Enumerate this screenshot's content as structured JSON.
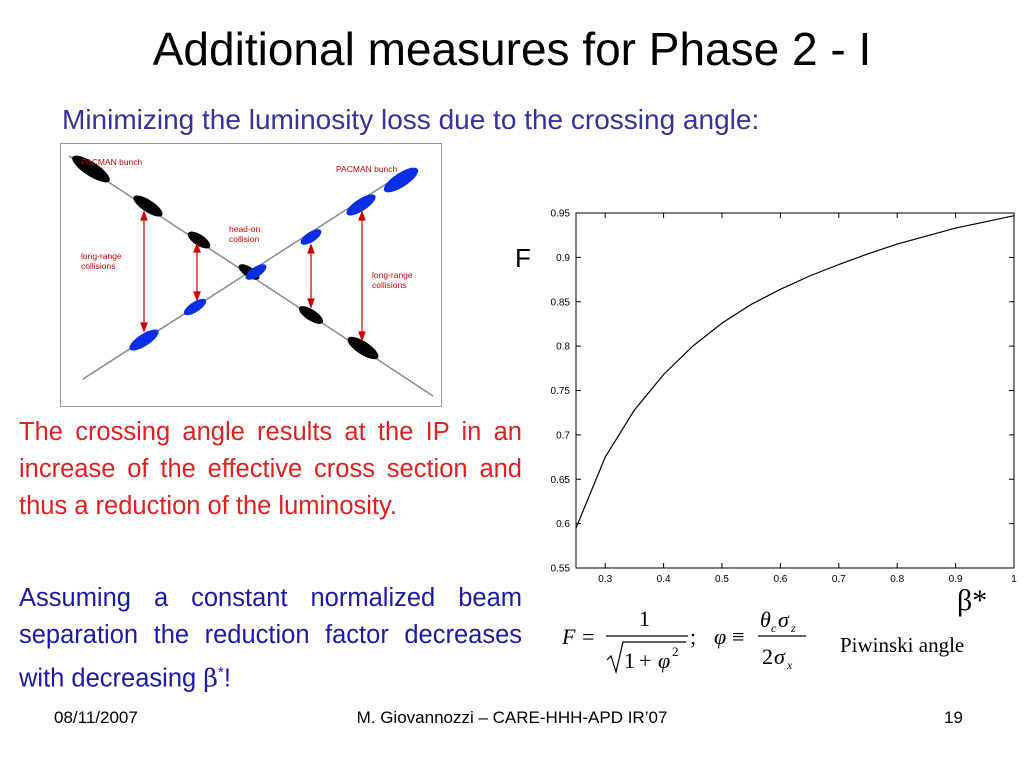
{
  "slide": {
    "title": "Additional measures for Phase 2 - I",
    "subtitle": "Minimizing the luminosity loss due to the crossing angle:"
  },
  "diagram": {
    "labels": {
      "pacman_left": "PACMAN bunch",
      "pacman_right": "PACMAN bunch",
      "head_on_1": "head-on",
      "head_on_2": "collision",
      "long_range_left_1": "long-range",
      "long_range_left_2": "collisions",
      "long_range_right_1": "long-range",
      "long_range_right_2": "collisions"
    },
    "colors": {
      "bunch_black": "#000000",
      "bunch_blue": "#0a2ee6",
      "arrow": "#cc0000",
      "label": "#cc0000"
    }
  },
  "text": {
    "para1": "The crossing angle results at the IP in an increase of the effective cross section and thus a reduction of the luminosity.",
    "para2": "Assuming a constant normalized beam separation the reduction factor decreases with decreasing ",
    "para2_beta": "β",
    "para2_star": "*",
    "para2_end": "!"
  },
  "chart_data": {
    "type": "line",
    "ylabel": "F",
    "xlabel": "β*",
    "xlim": [
      0.25,
      1.0
    ],
    "ylim": [
      0.55,
      0.95
    ],
    "xticks": [
      "0.3",
      "0.4",
      "0.5",
      "0.6",
      "0.7",
      "0.8",
      "0.9",
      "1"
    ],
    "yticks": [
      "0.55",
      "0.6",
      "0.65",
      "0.7",
      "0.75",
      "0.8",
      "0.85",
      "0.9",
      "0.95"
    ],
    "grid": false,
    "series": [
      {
        "x": [
          0.25,
          0.3,
          0.35,
          0.4,
          0.45,
          0.5,
          0.55,
          0.6,
          0.65,
          0.7,
          0.75,
          0.8,
          0.85,
          0.9,
          0.95,
          1.0
        ],
        "y": [
          0.595,
          0.675,
          0.728,
          0.768,
          0.8,
          0.826,
          0.847,
          0.864,
          0.879,
          0.892,
          0.904,
          0.915,
          0.924,
          0.933,
          0.94,
          0.947
        ]
      }
    ]
  },
  "formulas": {
    "f_lhs": "F",
    "eq": "=",
    "f_num": "1",
    "f_den_1": "1",
    "f_den_plus": "+",
    "f_den_phi": "φ",
    "f_den_exp": "2",
    "semicolon": ";",
    "phi": "φ",
    "equiv": "≡",
    "phi_num_theta": "θ",
    "phi_num_theta_sub": "c",
    "phi_num_sigma": "σ",
    "phi_num_sigma_sub": "z",
    "phi_den_2": "2",
    "phi_den_sigma": "σ",
    "phi_den_sigma_sub": "x",
    "piwinski": "Piwinski angle"
  },
  "footer": {
    "date": "08/11/2007",
    "author": "M. Giovannozzi – CARE-HHH-APD IR’07",
    "page": "19"
  }
}
